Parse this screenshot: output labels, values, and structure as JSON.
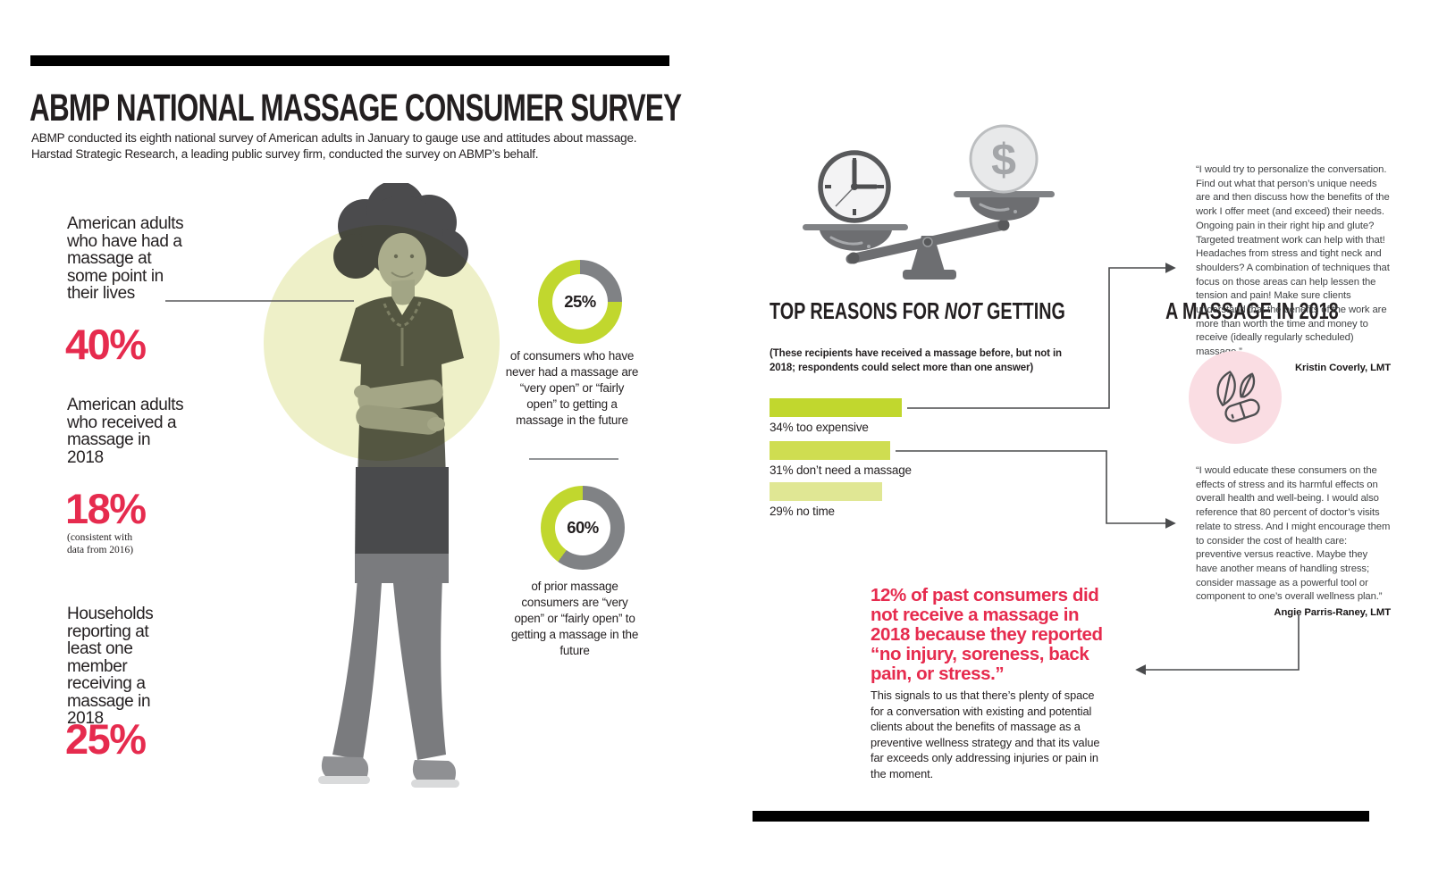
{
  "header": {
    "title": "ABMP NATIONAL MASSAGE CONSUMER SURVEY",
    "subtitle_lines": [
      "ABMP conducted its eighth national survey of American adults in January to gauge use and attitudes about massage.",
      "Harstad Strategic Research, a leading public survey firm, conducted the survey on ABMP’s behalf."
    ]
  },
  "stats": [
    {
      "label": "American adults who have had a massage at some point in their lives",
      "value": "40%",
      "note": ""
    },
    {
      "label": "American adults who received a massage in 2018",
      "value": "18%",
      "note": "(consistent with data from 2016)"
    },
    {
      "label": "Households reporting at least one member receiving a massage in 2018",
      "value": "25%",
      "note": ""
    }
  ],
  "reasons": {
    "title_pre": "TOP REASONS FOR ",
    "title_italic": "NOT",
    "title_post": " GETTING",
    "title_line2": "A MASSAGE IN 2018",
    "subtitle": "(These recipients have received a massage before, but not in 2018; respondents could select more than one answer)"
  },
  "chart_data": [
    {
      "type": "pie",
      "subtype": "donut",
      "center_label": "25%",
      "slices": [
        {
          "name": "highlighted-share",
          "value": 25,
          "color": "#808285"
        },
        {
          "name": "remainder",
          "value": 75,
          "color": "#c1d72e"
        }
      ],
      "caption": "of consumers who have never had a massage are “very open” or “fairly open” to getting a massage in the future"
    },
    {
      "type": "pie",
      "subtype": "donut",
      "center_label": "60%",
      "slices": [
        {
          "name": "highlighted-share",
          "value": 60,
          "color": "#808285"
        },
        {
          "name": "remainder",
          "value": 40,
          "color": "#c1d72e"
        }
      ],
      "caption": "of prior massage consumers are “very open” or “fairly open” to getting a massage in the future"
    },
    {
      "type": "bar",
      "orientation": "horizontal",
      "title": "TOP REASONS FOR NOT GETTING A MASSAGE IN 2018",
      "categories": [
        "too expensive",
        "don't need a massage",
        "no time"
      ],
      "values": [
        34,
        31,
        29
      ],
      "labels": [
        "34% too expensive",
        "31% don’t need a massage",
        "29% no time"
      ],
      "bar_colors": [
        "#c1d72e",
        "#cfdd51",
        "#e0e794"
      ]
    }
  ],
  "quotes": [
    {
      "text": "“I would try to personalize the conversation. Find out what that person’s unique needs are and then discuss how the benefits of the work I offer meet (and exceed) their needs. Ongoing pain in their right hip and glute? Targeted treatment work can help with that! Headaches from stress and tight neck and shoulders? A combination of techniques that focus on those areas can help lessen the tension and pain! Make sure clients understand that the benefits of the work are more than worth the time and money to receive (ideally regularly scheduled) massage.”",
      "attribution": "Kristin Coverly, LMT"
    },
    {
      "text": "“I would educate these consumers on the effects of stress and its harmful effects on overall health and well-being. I would also reference that 80 percent of doctor’s visits relate to stress. And I might encourage them to consider the cost of health care: preventive versus reactive. Maybe they have another means of handling stress; consider massage as a powerful tool or component to one’s overall wellness plan.”",
      "attribution": "Angie Parris-Raney, LMT"
    }
  ],
  "callout": {
    "highlight": "12% of past consumers did not receive a massage in 2018 because they reported “no injury, soreness, back pain, or stress.”",
    "body": "This signals to us that there’s plenty of space for a conversation with existing and potential clients about the benefits of massage as a preventive wellness strategy and that its value far exceeds only addressing injuries or pain in the moment."
  },
  "colors": {
    "accent_red": "#e62b4e",
    "lime_green": "#c1d72e",
    "lime_medium": "#cfdd51",
    "lime_pale": "#e0e794",
    "donut_gray": "#808285",
    "background_circle": "#eef0c8",
    "wellness_pink": "#fadde3",
    "ink": "#231f20"
  },
  "icons": [
    "balance-scale-icon",
    "clock-icon",
    "dollar-coin-icon",
    "leaf-pill-icon"
  ]
}
